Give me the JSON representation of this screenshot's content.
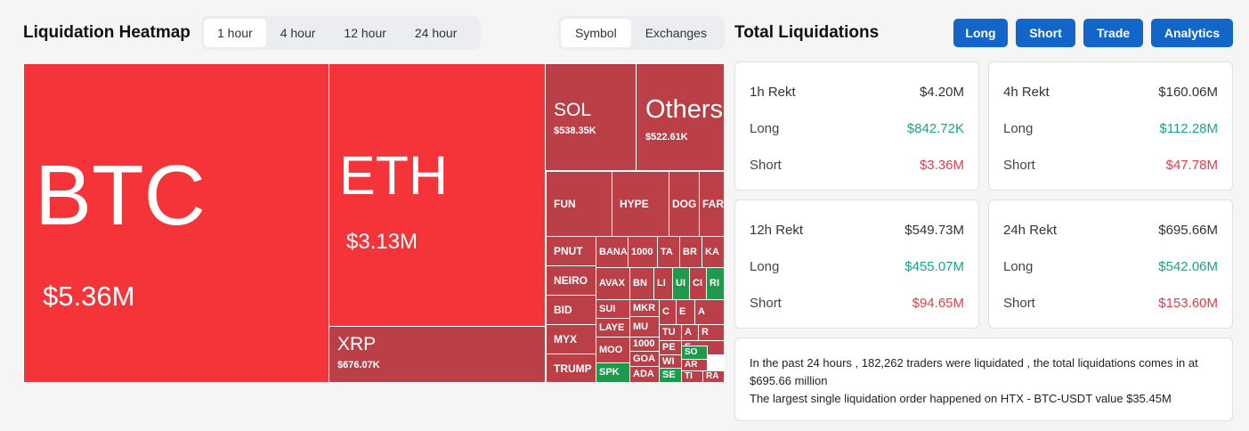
{
  "heatmap": {
    "title": "Liquidation Heatmap",
    "time_tabs": [
      "1 hour",
      "4 hour",
      "12 hour",
      "24 hour"
    ],
    "active_time_tab": 0,
    "view_tabs": [
      "Symbol",
      "Exchanges"
    ],
    "active_view_tab": 0,
    "colors": {
      "bright_red": "#f5343a",
      "dark_red": "#bb3f46",
      "green": "#1f9a4d"
    },
    "cells": {
      "btc": {
        "symbol": "BTC",
        "value": "$5.36M"
      },
      "eth": {
        "symbol": "ETH",
        "value": "$3.13M"
      },
      "xrp": {
        "symbol": "XRP",
        "value": "$676.07K"
      },
      "sol": {
        "symbol": "SOL",
        "value": "$538.35K"
      },
      "others": {
        "symbol": "Others",
        "value": "$522.61K"
      },
      "fun": "FUN",
      "hype": "HYPE",
      "doge": "DOG",
      "fart": "FAR",
      "pnut": "PNUT",
      "neiro": "NEIRO",
      "bid": "BID",
      "myx": "MYX",
      "trump": "TRUMP",
      "bana": "BANA",
      "k1000": "1000",
      "tao": "TA",
      "brett": "BR",
      "kaito": "KA",
      "avax": "AVAX",
      "bnb": "BN",
      "link": "LI",
      "uni": "UI",
      "crv": "CI",
      "render": "RI",
      "sui": "SUI",
      "mkr": "MKR",
      "c1": "C",
      "e1": "E",
      "a1": "A",
      "layer": "LAYE",
      "mu": "MU",
      "tu": "TU",
      "a2": "A",
      "r1": "R",
      "i1": "I",
      "moo": "MOO",
      "k1000b": "1000",
      "pe": "PE",
      "f1": "F",
      "goat": "GOA",
      "wi": "WI",
      "so": "SO",
      "ar": "AR",
      "spk": "SPK",
      "ada": "ADA",
      "se": "SE",
      "ti": "TI",
      "ra": "RA"
    }
  },
  "total": {
    "title": "Total Liquidations",
    "buttons": [
      "Long",
      "Short",
      "Trade",
      "Analytics"
    ],
    "cards": [
      {
        "title": "1h Rekt",
        "total": "$4.20M",
        "long_label": "Long",
        "long": "$842.72K",
        "short_label": "Short",
        "short": "$3.36M"
      },
      {
        "title": "4h Rekt",
        "total": "$160.06M",
        "long_label": "Long",
        "long": "$112.28M",
        "short_label": "Short",
        "short": "$47.78M"
      },
      {
        "title": "12h Rekt",
        "total": "$549.73M",
        "long_label": "Long",
        "long": "$455.07M",
        "short_label": "Short",
        "short": "$94.65M"
      },
      {
        "title": "24h Rekt",
        "total": "$695.66M",
        "long_label": "Long",
        "long": "$542.06M",
        "short_label": "Short",
        "short": "$153.60M"
      }
    ],
    "summary_line1": "In the past 24 hours , 182,262 traders were liquidated , the total liquidations comes in at $695.66 million",
    "summary_line2": "The largest single liquidation order happened on HTX - BTC-USDT value $35.45M"
  }
}
